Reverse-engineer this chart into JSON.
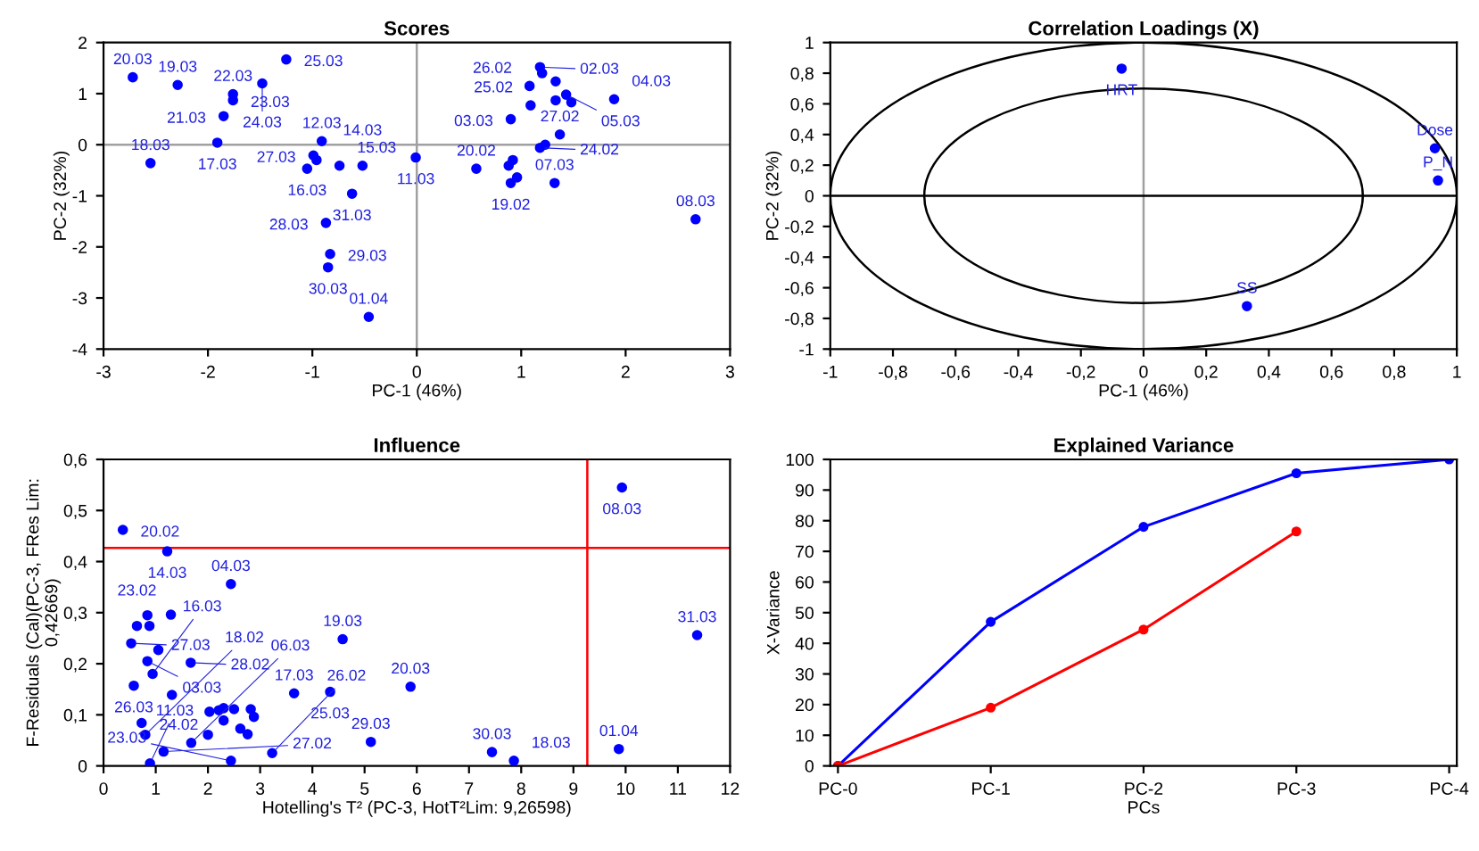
{
  "chart_data": [
    {
      "type": "scatter",
      "title": "Scores",
      "xlabel": "PC-1 (46%)",
      "ylabel": "PC-2 (32%)",
      "xlim": [
        -3,
        3
      ],
      "ylim": [
        -4,
        2
      ],
      "xticks": [
        -3,
        -2,
        -1,
        0,
        1,
        2,
        3
      ],
      "yticks": [
        -4,
        -3,
        -2,
        -1,
        0,
        1,
        2
      ],
      "marker": "circle",
      "series": [
        {
          "color": "#0000ff",
          "x": [
            -2.72,
            -2.29,
            -1.76,
            -1.76,
            -1.85,
            -1.48,
            -1.25,
            -1.91,
            -2.55,
            -1.05,
            -0.99,
            -0.96,
            -0.91,
            -0.74,
            -0.52,
            -0.62,
            -0.87,
            -0.83,
            -0.85,
            -0.46,
            -0.01,
            0.57,
            0.88,
            0.92,
            0.9,
            0.96,
            1.18,
            1.23,
            1.37,
            0.9,
            1.09,
            1.08,
            1.18,
            1.2,
            1.33,
            1.33,
            1.43,
            1.48,
            1.89,
            1.32,
            2.67
          ],
          "values": [
            1.32,
            1.17,
            0.99,
            0.87,
            0.56,
            1.2,
            1.67,
            0.04,
            -0.36,
            -0.47,
            -0.21,
            -0.3,
            0.07,
            -0.41,
            -0.41,
            -0.96,
            -1.53,
            -2.14,
            -2.4,
            -3.37,
            -0.25,
            -0.47,
            -0.41,
            -0.3,
            -0.75,
            -0.64,
            -0.06,
            0.0,
            0.2,
            0.5,
            0.77,
            1.15,
            1.52,
            1.4,
            1.24,
            0.87,
            0.98,
            0.83,
            0.89,
            -0.75,
            -1.46
          ]
        }
      ],
      "ref_lines": [
        {
          "axis": "x",
          "value": 0,
          "color": "#a0a0a0"
        },
        {
          "axis": "y",
          "value": 0,
          "color": "#a0a0a0"
        }
      ],
      "annotations": [
        {
          "text": "20.03",
          "x": -2.72,
          "y": 1.32
        },
        {
          "text": "19.03",
          "x": -2.29,
          "y": 1.17
        },
        {
          "text": "22.03",
          "x": -1.76,
          "y": 0.99
        },
        {
          "text": "23.03",
          "x": -1.76,
          "y": 0.87
        },
        {
          "text": "21.03",
          "x": -1.85,
          "y": 0.56
        },
        {
          "text": "24.03",
          "x": -1.48,
          "y": 1.2
        },
        {
          "text": "25.03",
          "x": -1.25,
          "y": 1.67
        },
        {
          "text": "17.03",
          "x": -1.91,
          "y": 0.04
        },
        {
          "text": "18.03",
          "x": -2.55,
          "y": -0.36
        },
        {
          "text": "16.03",
          "x": -1.05,
          "y": -0.47
        },
        {
          "text": "27.03",
          "x": -0.99,
          "y": -0.21
        },
        {
          "text": "12.03",
          "x": -0.91,
          "y": 0.07
        },
        {
          "text": "15.03",
          "x": -0.74,
          "y": -0.41
        },
        {
          "text": "14.03",
          "x": -0.52,
          "y": -0.41
        },
        {
          "text": "31.03",
          "x": -0.62,
          "y": -0.96
        },
        {
          "text": "28.03",
          "x": -0.87,
          "y": -1.53
        },
        {
          "text": "29.03",
          "x": -0.83,
          "y": -2.14
        },
        {
          "text": "30.03",
          "x": -0.85,
          "y": -2.4
        },
        {
          "text": "01.04",
          "x": -0.46,
          "y": -3.37
        },
        {
          "text": "11.03",
          "x": -0.01,
          "y": -0.25
        },
        {
          "text": "20.02",
          "x": 0.57,
          "y": -0.47
        },
        {
          "text": "19.02",
          "x": 0.9,
          "y": -0.75
        },
        {
          "text": "07.03",
          "x": 1.32,
          "y": -0.75
        },
        {
          "text": "24.02",
          "x": 1.18,
          "y": -0.06
        },
        {
          "text": "27.02",
          "x": 1.37,
          "y": 0.2
        },
        {
          "text": "03.03",
          "x": 0.9,
          "y": 0.5
        },
        {
          "text": "25.02",
          "x": 1.09,
          "y": 0.77
        },
        {
          "text": "26.02",
          "x": 1.08,
          "y": 1.15
        },
        {
          "text": "02.03",
          "x": 1.18,
          "y": 1.52
        },
        {
          "text": "05.03",
          "x": 1.43,
          "y": 0.98
        },
        {
          "text": "04.03",
          "x": 1.89,
          "y": 0.89
        },
        {
          "text": "08.03",
          "x": 2.67,
          "y": -1.46
        }
      ]
    },
    {
      "type": "scatter",
      "title": "Correlation Loadings (X)",
      "xlabel": "PC-1 (46%)",
      "ylabel": "PC-2 (32%)",
      "xlim": [
        -1,
        1
      ],
      "ylim": [
        -1,
        1
      ],
      "xticks": [
        {
          "value": -1,
          "label": "-1"
        },
        {
          "value": -0.8,
          "label": "-0,8"
        },
        {
          "value": -0.6,
          "label": "-0,6"
        },
        {
          "value": -0.4,
          "label": "-0,4"
        },
        {
          "value": -0.2,
          "label": "-0,2"
        },
        0,
        {
          "value": 0.2,
          "label": "0,2"
        },
        {
          "value": 0.4,
          "label": "0,4"
        },
        {
          "value": 0.6,
          "label": "0,6"
        },
        {
          "value": 0.8,
          "label": "0,8"
        },
        1
      ],
      "yticks": [
        -1,
        {
          "value": -0.8,
          "label": "-0,8"
        },
        {
          "value": -0.6,
          "label": "-0,6"
        },
        {
          "value": -0.4,
          "label": "-0,4"
        },
        {
          "value": -0.2,
          "label": "-0,2"
        },
        0,
        {
          "value": 0.2,
          "label": "0,2"
        },
        {
          "value": 0.4,
          "label": "0,4"
        },
        {
          "value": 0.6,
          "label": "0,6"
        },
        {
          "value": 0.8,
          "label": "0,8"
        },
        1
      ],
      "marker": "circle",
      "series": [
        {
          "color": "#0000ff",
          "x": [
            -0.07,
            0.93,
            0.94,
            0.33
          ],
          "values": [
            0.83,
            0.31,
            0.1,
            -0.72
          ]
        }
      ],
      "ref_lines": [
        {
          "axis": "x",
          "value": 0,
          "color": "#a0a0a0"
        },
        {
          "axis": "y",
          "value": 0,
          "color": "#000000"
        }
      ],
      "annotations": [
        {
          "text": "HRT",
          "x": -0.07,
          "y": 0.83
        },
        {
          "text": "Dose",
          "x": 0.93,
          "y": 0.31
        },
        {
          "text": "P_N",
          "x": 0.94,
          "y": 0.1
        },
        {
          "text": "SS",
          "x": 0.33,
          "y": -0.72
        }
      ]
    },
    {
      "type": "scatter",
      "title": "Influence",
      "xlabel": "Hotelling's T² (PC-3, HotT²Lim: 9,26598)",
      "ylabel": "F-Residuals (Cal)(PC-3, FRes Lim:\n0,42669)",
      "xlim": [
        0,
        12
      ],
      "ylim": [
        0,
        0.6
      ],
      "xticks": [
        0,
        1,
        2,
        3,
        4,
        5,
        6,
        7,
        8,
        9,
        10,
        11,
        12
      ],
      "yticks": [
        0,
        {
          "value": 0.1,
          "label": "0,1"
        },
        {
          "value": 0.2,
          "label": "0,2"
        },
        {
          "value": 0.3,
          "label": "0,3"
        },
        {
          "value": 0.4,
          "label": "0,4"
        },
        {
          "value": 0.5,
          "label": "0,5"
        },
        {
          "value": 0.6,
          "label": "0,6"
        }
      ],
      "marker": "circle",
      "series": [
        {
          "color": "#0000ff",
          "x": [
            0.37,
            1.22,
            2.44,
            9.93,
            11.37,
            4.58,
            3.65,
            4.34,
            5.88,
            5.12,
            7.44,
            7.86,
            9.87,
            0.84,
            1.29,
            0.64,
            0.88,
            0.53,
            1.05,
            0.84,
            1.67,
            0.94,
            0.58,
            1.31,
            0.73,
            0.8,
            1.15,
            0.89,
            1.68,
            2.0,
            2.03,
            2.21,
            2.3,
            2.3,
            2.5,
            2.62,
            2.76,
            2.82,
            2.88,
            2.44,
            3.23
          ],
          "values": [
            0.462,
            0.42,
            0.356,
            0.545,
            0.256,
            0.248,
            0.142,
            0.145,
            0.155,
            0.047,
            0.027,
            0.01,
            0.033,
            0.295,
            0.296,
            0.274,
            0.274,
            0.24,
            0.227,
            0.205,
            0.202,
            0.18,
            0.157,
            0.139,
            0.084,
            0.061,
            0.028,
            0.005,
            0.045,
            0.061,
            0.106,
            0.109,
            0.113,
            0.089,
            0.111,
            0.073,
            0.062,
            0.111,
            0.096,
            0.01,
            0.025
          ]
        }
      ],
      "ref_lines": [
        {
          "axis": "x",
          "value": 9.26598,
          "color": "#ff0000"
        },
        {
          "axis": "y",
          "value": 0.42669,
          "color": "#ff0000"
        }
      ],
      "annotations": [
        {
          "text": "20.02",
          "x": 0.37,
          "y": 0.462
        },
        {
          "text": "14.03",
          "x": 1.22,
          "y": 0.42
        },
        {
          "text": "04.03",
          "x": 2.44,
          "y": 0.356
        },
        {
          "text": "08.03",
          "x": 9.93,
          "y": 0.545
        },
        {
          "text": "31.03",
          "x": 11.37,
          "y": 0.256
        },
        {
          "text": "19.03",
          "x": 4.58,
          "y": 0.248
        },
        {
          "text": "17.03",
          "x": 3.65,
          "y": 0.142
        },
        {
          "text": "25.03",
          "x": 4.34,
          "y": 0.145
        },
        {
          "text": "20.03",
          "x": 5.88,
          "y": 0.155
        },
        {
          "text": "29.03",
          "x": 5.12,
          "y": 0.047
        },
        {
          "text": "30.03",
          "x": 7.44,
          "y": 0.027
        },
        {
          "text": "18.03",
          "x": 7.86,
          "y": 0.01
        },
        {
          "text": "01.04",
          "x": 9.87,
          "y": 0.033
        },
        {
          "text": "23.02",
          "x": 0.64,
          "y": 0.274
        },
        {
          "text": "27.03",
          "x": 0.53,
          "y": 0.24
        },
        {
          "text": "03.03",
          "x": 0.84,
          "y": 0.205
        },
        {
          "text": "28.02",
          "x": 1.67,
          "y": 0.202
        },
        {
          "text": "16.03",
          "x": 0.94,
          "y": 0.18
        },
        {
          "text": "26.03",
          "x": 0.58,
          "y": 0.157
        },
        {
          "text": "24.02",
          "x": 0.73,
          "y": 0.084
        },
        {
          "text": "18.02",
          "x": 0.8,
          "y": 0.061
        },
        {
          "text": "27.02",
          "x": 1.15,
          "y": 0.028
        },
        {
          "text": "11.03",
          "x": 0.89,
          "y": 0.005
        },
        {
          "text": "06.03",
          "x": 1.68,
          "y": 0.045
        },
        {
          "text": "23.03",
          "x": 2.44,
          "y": 0.01
        },
        {
          "text": "26.02",
          "x": 3.23,
          "y": 0.025
        }
      ]
    },
    {
      "type": "line",
      "title": "Explained Variance",
      "xlabel": "PCs",
      "ylabel": "X-Variance",
      "categories": [
        "PC-0",
        "PC-1",
        "PC-2",
        "PC-3",
        "PC-4"
      ],
      "ylim": [
        0,
        100
      ],
      "yticks": [
        0,
        10,
        20,
        30,
        40,
        50,
        60,
        70,
        80,
        90,
        100
      ],
      "marker": "circle",
      "series": [
        {
          "color": "#0000ff",
          "values": [
            0,
            47,
            78,
            95.5,
            100
          ]
        },
        {
          "color": "#ff0000",
          "values": [
            0,
            19,
            44.5,
            76.5,
            null
          ]
        }
      ]
    }
  ]
}
